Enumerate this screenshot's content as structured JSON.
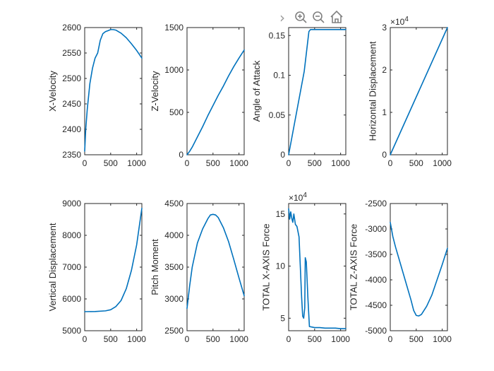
{
  "toolbar": {
    "items": [
      {
        "name": "expand-arrow-icon",
        "glyph": "›"
      },
      {
        "name": "zoom-in-icon"
      },
      {
        "name": "zoom-out-icon"
      },
      {
        "name": "home-icon"
      }
    ]
  },
  "colors": {
    "line": "#0072BD",
    "axis": "#262626",
    "background": "#ffffff"
  },
  "chart_data": [
    {
      "type": "line",
      "ylabel": "X-Velocity",
      "xlim": [
        0,
        1100
      ],
      "ylim": [
        2350,
        2600
      ],
      "xticks": [
        0,
        500,
        1000
      ],
      "xtick_labels": [
        "0",
        "500",
        "1000"
      ],
      "yticks": [
        2350,
        2400,
        2450,
        2500,
        2550,
        2600
      ],
      "ytick_labels": [
        "2350",
        "2400",
        "2450",
        "2500",
        "2550",
        "2600"
      ],
      "exponent": "",
      "x": [
        0,
        20,
        50,
        100,
        150,
        200,
        250,
        300,
        350,
        400,
        450,
        500,
        550,
        600,
        650,
        700,
        800,
        900,
        1000,
        1100
      ],
      "y": [
        2357,
        2400,
        2440,
        2490,
        2520,
        2540,
        2550,
        2575,
        2588,
        2592,
        2594,
        2596,
        2596,
        2595,
        2592,
        2589,
        2580,
        2568,
        2555,
        2540
      ]
    },
    {
      "type": "line",
      "ylabel": "Z-Velocity",
      "xlim": [
        0,
        1100
      ],
      "ylim": [
        0,
        1500
      ],
      "xticks": [
        0,
        500,
        1000
      ],
      "xtick_labels": [
        "0",
        "500",
        "1000"
      ],
      "yticks": [
        0,
        500,
        1000,
        1500
      ],
      "ytick_labels": [
        "0",
        "500",
        "1000",
        "1500"
      ],
      "exponent": "",
      "x": [
        0,
        50,
        100,
        150,
        200,
        300,
        400,
        500,
        600,
        700,
        800,
        900,
        1000,
        1100
      ],
      "y": [
        0,
        40,
        90,
        150,
        210,
        330,
        460,
        580,
        700,
        810,
        930,
        1040,
        1140,
        1235
      ]
    },
    {
      "type": "line",
      "ylabel": "Angle of Attack",
      "xlim": [
        0,
        1100
      ],
      "ylim": [
        0,
        0.16
      ],
      "xticks": [
        0,
        500,
        1000
      ],
      "xtick_labels": [
        "0",
        "500",
        "1000"
      ],
      "yticks": [
        0,
        0.05,
        0.1,
        0.15
      ],
      "ytick_labels": [
        "0",
        "0.05",
        "0.1",
        "0.15"
      ],
      "exponent": "",
      "x": [
        0,
        100,
        200,
        300,
        390,
        420,
        600,
        800,
        1100
      ],
      "y": [
        0,
        0.035,
        0.07,
        0.105,
        0.155,
        0.1575,
        0.1575,
        0.1575,
        0.1575
      ]
    },
    {
      "type": "line",
      "ylabel": "Horizontal Displacement",
      "xlim": [
        0,
        1100
      ],
      "ylim": [
        0,
        30000
      ],
      "xticks": [
        0,
        500,
        1000
      ],
      "xtick_labels": [
        "0",
        "500",
        "1000"
      ],
      "yticks": [
        0,
        10000,
        20000,
        30000
      ],
      "ytick_labels": [
        "0",
        "1",
        "2",
        "3"
      ],
      "exponent": "×10^4",
      "x": [
        0,
        550,
        1100
      ],
      "y": [
        0,
        15000,
        30000
      ]
    },
    {
      "type": "line",
      "ylabel": "Vertical Displacement",
      "xlim": [
        0,
        1100
      ],
      "ylim": [
        5000,
        9000
      ],
      "xticks": [
        0,
        500,
        1000
      ],
      "xtick_labels": [
        "0",
        "500",
        "1000"
      ],
      "yticks": [
        5000,
        6000,
        7000,
        8000,
        9000
      ],
      "ytick_labels": [
        "5000",
        "6000",
        "7000",
        "8000",
        "9000"
      ],
      "exponent": "",
      "x": [
        0,
        200,
        400,
        500,
        600,
        700,
        800,
        900,
        1000,
        1100
      ],
      "y": [
        5600,
        5605,
        5625,
        5660,
        5760,
        5950,
        6320,
        6900,
        7700,
        8850
      ]
    },
    {
      "type": "line",
      "ylabel": "Pitch Moment",
      "xlim": [
        0,
        1100
      ],
      "ylim": [
        2500,
        4500
      ],
      "xticks": [
        0,
        500,
        1000
      ],
      "xtick_labels": [
        "0",
        "500",
        "1000"
      ],
      "yticks": [
        2500,
        3000,
        3500,
        4000,
        4500
      ],
      "ytick_labels": [
        "2500",
        "3000",
        "3500",
        "4000",
        "4500"
      ],
      "exponent": "",
      "x": [
        0,
        50,
        100,
        200,
        300,
        400,
        450,
        500,
        550,
        600,
        700,
        800,
        900,
        1000,
        1100
      ],
      "y": [
        2850,
        3200,
        3500,
        3880,
        4100,
        4260,
        4320,
        4330,
        4320,
        4280,
        4120,
        3900,
        3620,
        3330,
        3050
      ]
    },
    {
      "type": "line",
      "ylabel": "TOTAL X-AXIS Force",
      "xlim": [
        0,
        1100
      ],
      "ylim": [
        38000,
        160000
      ],
      "xticks": [
        0,
        500,
        1000
      ],
      "xtick_labels": [
        "0",
        "500",
        "1000"
      ],
      "yticks": [
        50000,
        100000,
        150000
      ],
      "ytick_labels": [
        "5",
        "10",
        "15"
      ],
      "exponent": "×10^4",
      "x": [
        0,
        20,
        40,
        60,
        80,
        100,
        130,
        160,
        200,
        250,
        270,
        290,
        310,
        320,
        340,
        370,
        400,
        450,
        500,
        550,
        600,
        700,
        800,
        900,
        1000,
        1100
      ],
      "y": [
        155000,
        145000,
        152000,
        146000,
        142000,
        150000,
        140000,
        138000,
        128000,
        70000,
        52000,
        50000,
        60000,
        108000,
        104000,
        70000,
        42000,
        41500,
        41000,
        41000,
        41000,
        40500,
        40500,
        40500,
        40000,
        40000
      ]
    },
    {
      "type": "line",
      "ylabel": "TOTAL Z-AXIS Force",
      "xlim": [
        0,
        1100
      ],
      "ylim": [
        -5000,
        -2500
      ],
      "xticks": [
        0,
        500,
        1000
      ],
      "xtick_labels": [
        "0",
        "500",
        "1000"
      ],
      "yticks": [
        -5000,
        -4500,
        -4000,
        -3500,
        -3000,
        -2500
      ],
      "ytick_labels": [
        "-5000",
        "-4500",
        "-4000",
        "-3500",
        "-3000",
        "-2500"
      ],
      "exponent": "",
      "x": [
        0,
        50,
        100,
        200,
        300,
        400,
        450,
        500,
        550,
        600,
        700,
        800,
        900,
        1000,
        1100
      ],
      "y": [
        -2870,
        -3150,
        -3350,
        -3700,
        -4050,
        -4400,
        -4600,
        -4700,
        -4710,
        -4680,
        -4520,
        -4300,
        -4000,
        -3700,
        -3380
      ]
    }
  ]
}
